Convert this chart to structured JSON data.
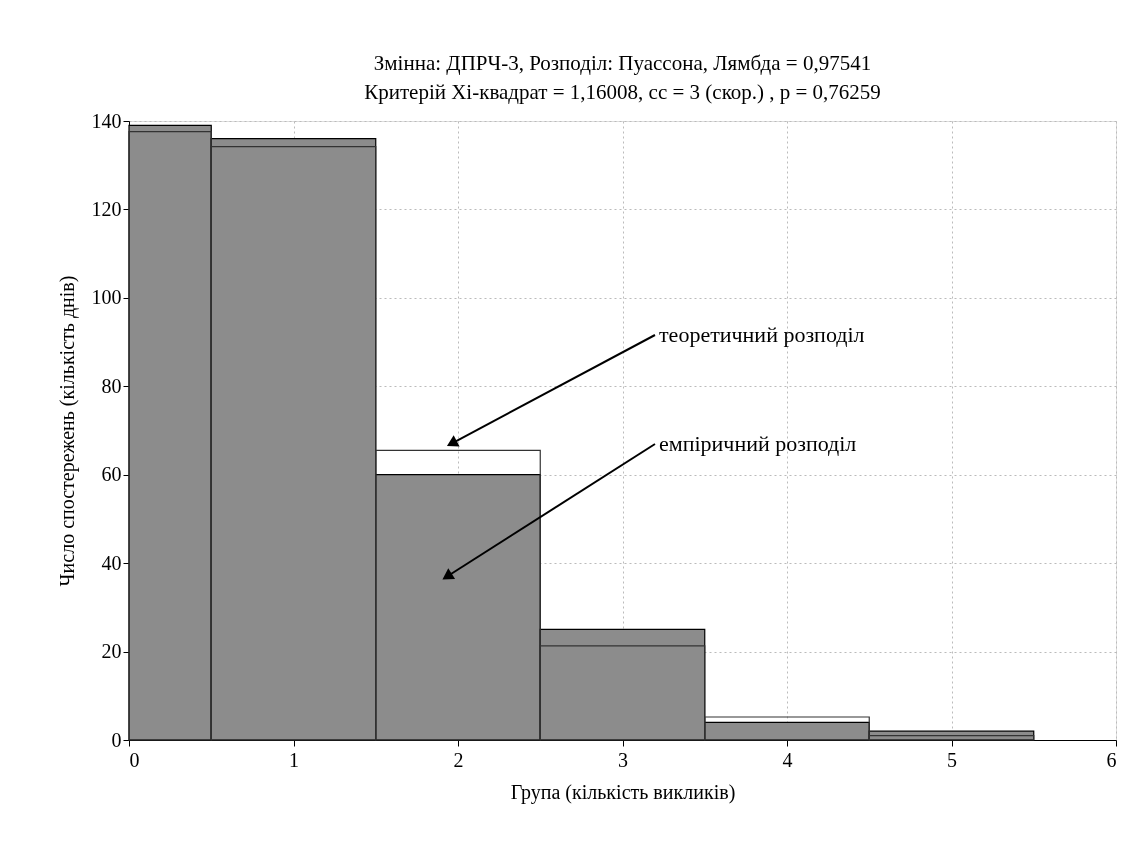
{
  "chart_data": {
    "type": "histogram",
    "title": "Змінна: ДПРЧ-3, Розподіл: Пуассона, Лямбда = 0,97541",
    "subtitle": "Критерій Хі-квадрат = 1,16008, сс = 3 (скор.) , p = 0,76259",
    "xlabel": "Група (кількість викликів)",
    "ylabel": "Число спостережень (кількість днів)",
    "bins": [
      0,
      0.5,
      1.5,
      2.5,
      3.5,
      4.5,
      5.5
    ],
    "series": [
      {
        "color": "#8c8c8c",
        "values": [
          139,
          136,
          60,
          25,
          4,
          2
        ]
      },
      {
        "color": "#333333",
        "values": [
          137.6,
          134.2,
          65.5,
          21.3,
          5.2,
          1.0
        ]
      }
    ],
    "annotations": [
      "теоретичний розподіл",
      "емпіричний розподіл"
    ],
    "xlim": [
      0,
      6
    ],
    "xticks": [
      0,
      1,
      2,
      3,
      4,
      5,
      6
    ],
    "ylim": [
      0,
      140
    ],
    "yticks": [
      0,
      20,
      40,
      60,
      80,
      100,
      120,
      140
    ],
    "grid": true
  }
}
